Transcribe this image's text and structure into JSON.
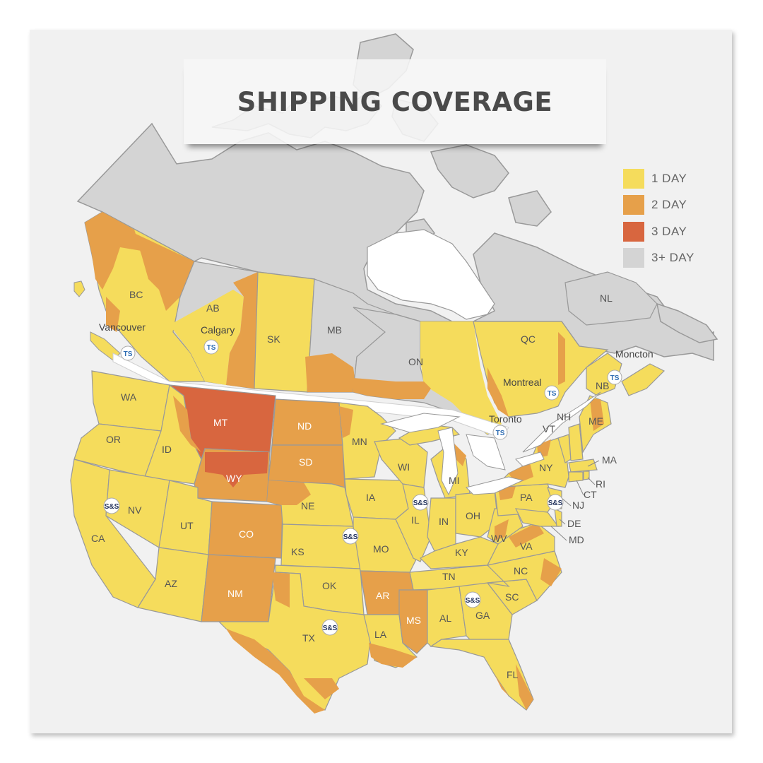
{
  "title": "SHIPPING COVERAGE",
  "colors": {
    "one_day": "#f5dc5c",
    "two_day": "#e6a04a",
    "three_day": "#d8663f",
    "three_plus_day": "#d4d4d4",
    "water": "#ffffff",
    "border": "#999999"
  },
  "legend": [
    {
      "label": "1 DAY",
      "color": "#f5dc5c"
    },
    {
      "label": "2 DAY",
      "color": "#e6a04a"
    },
    {
      "label": "3 DAY",
      "color": "#d8663f"
    },
    {
      "label": "3+ DAY",
      "color": "#d4d4d4"
    }
  ],
  "regions": {
    "canada": [
      "BC",
      "AB",
      "SK",
      "MB",
      "ON",
      "QC",
      "NB",
      "NL"
    ],
    "usa": [
      "WA",
      "OR",
      "CA",
      "ID",
      "NV",
      "MT",
      "WY",
      "UT",
      "AZ",
      "CO",
      "NM",
      "ND",
      "SD",
      "NE",
      "KS",
      "OK",
      "TX",
      "MN",
      "IA",
      "MO",
      "AR",
      "LA",
      "WI",
      "IL",
      "MS",
      "MI",
      "IN",
      "KY",
      "TN",
      "AL",
      "GA",
      "FL",
      "OH",
      "WV",
      "VA",
      "NC",
      "SC",
      "PA",
      "NY",
      "VT",
      "NH",
      "ME",
      "MA",
      "RI",
      "CT",
      "NJ",
      "DE",
      "MD"
    ]
  },
  "cities": [
    "Vancouver",
    "Calgary",
    "Toronto",
    "Montreal",
    "Moncton"
  ],
  "markers": {
    "ts": "TS",
    "ss": "S&S"
  }
}
